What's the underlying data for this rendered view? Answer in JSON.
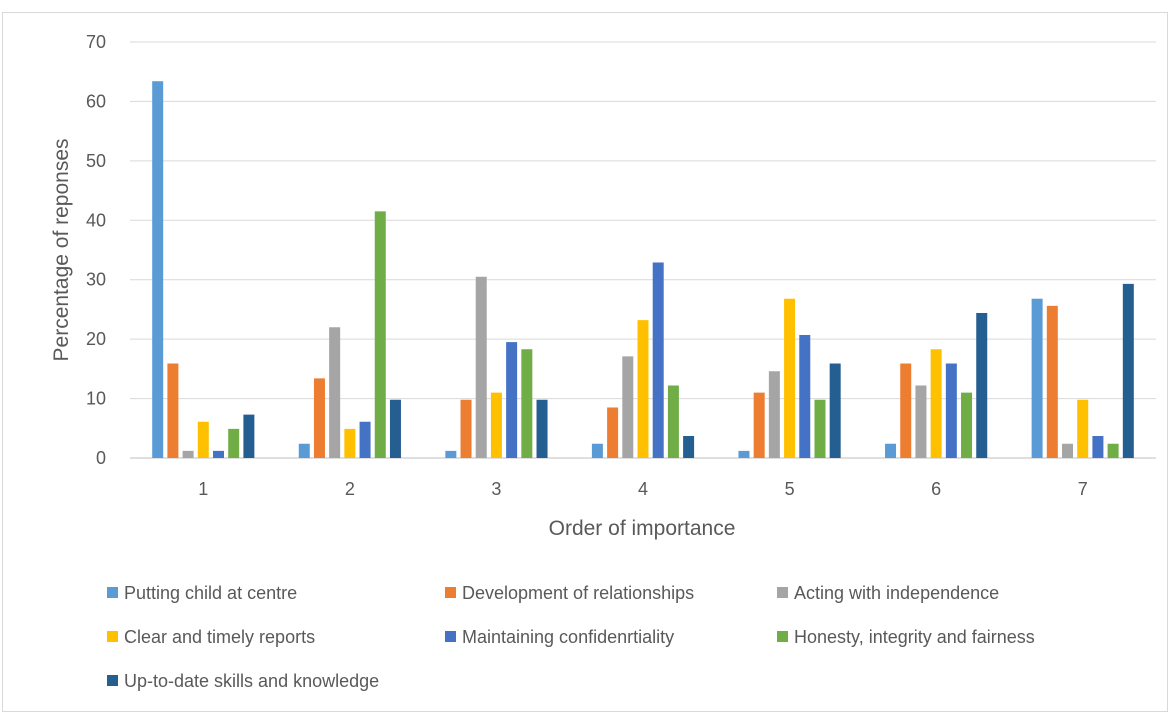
{
  "chart_data": {
    "type": "bar",
    "title": "",
    "xlabel": "Order of importance",
    "ylabel": "Percentage of reponses",
    "ylim": [
      0,
      70
    ],
    "yticks": [
      0,
      10,
      20,
      30,
      40,
      50,
      60,
      70
    ],
    "grid": "horizontal",
    "legend_position": "bottom",
    "categories": [
      "1",
      "2",
      "3",
      "4",
      "5",
      "6",
      "7"
    ],
    "series": [
      {
        "name": "Putting child at centre",
        "color": "#5b9bd5",
        "values": [
          63.4,
          2.4,
          1.2,
          2.4,
          1.2,
          2.4,
          26.8
        ]
      },
      {
        "name": "Development of relationships",
        "color": "#ed7d31",
        "values": [
          15.9,
          13.4,
          9.8,
          8.5,
          11.0,
          15.9,
          25.6
        ]
      },
      {
        "name": "Acting with independence",
        "color": "#a5a5a5",
        "values": [
          1.2,
          22.0,
          30.5,
          17.1,
          14.6,
          12.2,
          2.4
        ]
      },
      {
        "name": "Clear and timely reports",
        "color": "#ffc000",
        "values": [
          6.1,
          4.9,
          11.0,
          23.2,
          26.8,
          18.3,
          9.8
        ]
      },
      {
        "name": "Maintaining confidenrtiality",
        "color": "#4472c4",
        "values": [
          1.2,
          6.1,
          19.5,
          32.9,
          20.7,
          15.9,
          3.7
        ]
      },
      {
        "name": "Honesty, integrity and fairness",
        "color": "#70ad47",
        "values": [
          4.9,
          41.5,
          18.3,
          12.2,
          9.8,
          11.0,
          2.4
        ]
      },
      {
        "name": "Up-to-date skills and knowledge",
        "color": "#255e91",
        "values": [
          7.3,
          9.8,
          9.8,
          3.7,
          15.9,
          24.4,
          29.3
        ]
      }
    ]
  }
}
